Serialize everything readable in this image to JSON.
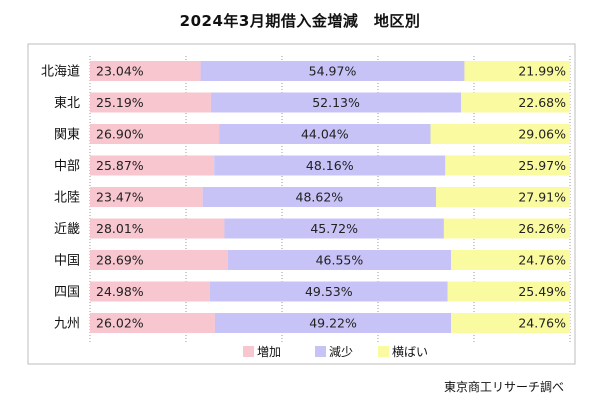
{
  "chart_data": {
    "type": "bar",
    "stacked": true,
    "percent": true,
    "orientation": "horizontal",
    "title": "2024年3月期借入金増減　地区別",
    "categories": [
      "北海道",
      "東北",
      "関東",
      "中部",
      "北陸",
      "近畿",
      "中国",
      "四国",
      "九州"
    ],
    "series": [
      {
        "name": "増加",
        "color": "#f7c6cf",
        "values": [
          23.04,
          25.19,
          26.9,
          25.87,
          23.47,
          28.01,
          28.69,
          24.98,
          26.02
        ],
        "labels": [
          "23.04%",
          "25.19%",
          "26.90%",
          "25.87%",
          "23.47%",
          "28.01%",
          "28.69%",
          "24.98%",
          "26.02%"
        ]
      },
      {
        "name": "減少",
        "color": "#c7c3f7",
        "values": [
          54.97,
          52.13,
          44.04,
          48.16,
          48.62,
          45.72,
          46.55,
          49.53,
          49.22
        ],
        "labels": [
          "54.97%",
          "52.13%",
          "44.04%",
          "48.16%",
          "48.62%",
          "45.72%",
          "46.55%",
          "49.53%",
          "49.22%"
        ]
      },
      {
        "name": "横ばい",
        "color": "#fafaa0",
        "values": [
          21.99,
          22.68,
          29.06,
          25.97,
          27.91,
          26.26,
          24.76,
          25.49,
          24.76
        ],
        "labels": [
          "21.99%",
          "22.68%",
          "29.06%",
          "25.97%",
          "27.91%",
          "26.26%",
          "24.76%",
          "25.49%",
          "24.76%"
        ]
      }
    ],
    "xlim": [
      0,
      100
    ],
    "grid": true,
    "legend_position": "bottom"
  },
  "source": "東京商工リサーチ調べ",
  "colors": {
    "grid": "#9a9a9a",
    "frame": "#bdbdbd"
  }
}
